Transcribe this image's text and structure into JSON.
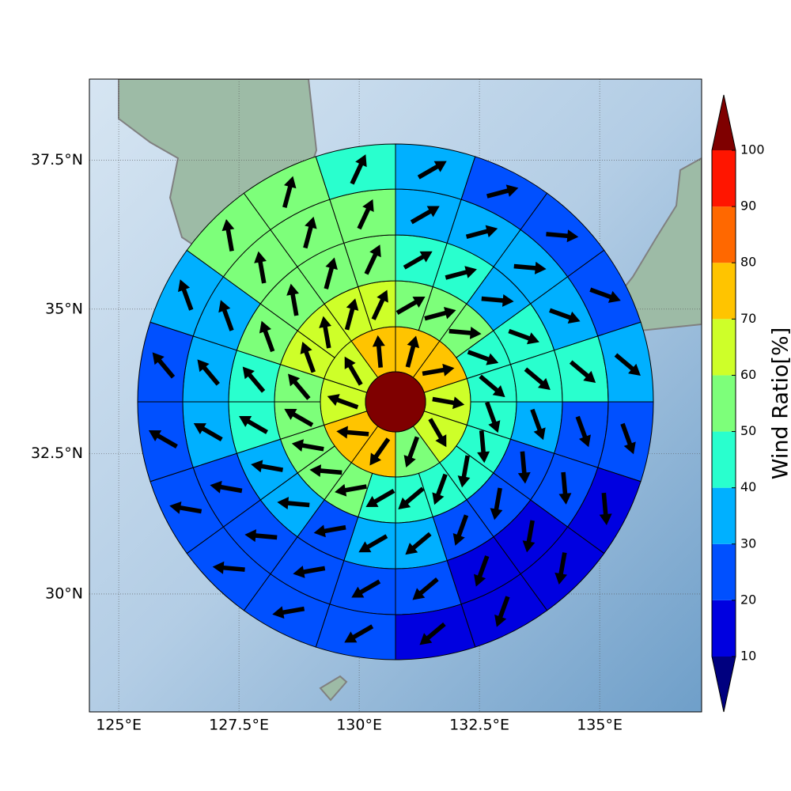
{
  "chart_data": {
    "type": "polar-sectors",
    "xlim": [
      124.39,
      137.12
    ],
    "ylim": [
      27.85,
      38.83
    ],
    "xticks": [
      {
        "value": 125,
        "label": "125°E"
      },
      {
        "value": 127.5,
        "label": "127.5°E"
      },
      {
        "value": 130,
        "label": "130°E"
      },
      {
        "value": 132.5,
        "label": "132.5°E"
      },
      {
        "value": 135,
        "label": "135°E"
      }
    ],
    "yticks": [
      {
        "value": 30,
        "label": "30°N"
      },
      {
        "value": 32.5,
        "label": "32.5°N"
      },
      {
        "value": 35,
        "label": "35°N"
      },
      {
        "value": 37.5,
        "label": "37.5°N"
      }
    ],
    "grid": true,
    "colorbar": {
      "label": "Wind Ratio[%]",
      "levels": [
        10,
        20,
        30,
        40,
        50,
        60,
        70,
        80,
        90,
        100
      ],
      "colors": [
        "#0000e0",
        "#0050ff",
        "#00b0ff",
        "#29ffce",
        "#7dff7a",
        "#ceff29",
        "#ffc400",
        "#ff6800",
        "#ff1500"
      ],
      "under_color": "#00007f",
      "over_color": "#7f0000"
    },
    "center_value": 105,
    "rings": [
      {
        "values": [
          75,
          75,
          65,
          65,
          55,
          75,
          75,
          65,
          65,
          75
        ],
        "directions": [
          15,
          80,
          100,
          150,
          200,
          215,
          275,
          290,
          330,
          355
        ]
      },
      {
        "values": [
          55,
          55,
          55,
          45,
          45,
          45,
          45,
          45,
          45,
          45,
          45,
          55,
          55,
          55,
          55,
          55,
          65,
          65,
          65,
          65
        ],
        "directions": [
          60,
          75,
          95,
          110,
          130,
          160,
          175,
          190,
          200,
          230,
          240,
          260,
          275,
          280,
          300,
          320,
          340,
          350,
          15,
          25
        ]
      },
      {
        "values": [
          45,
          45,
          35,
          45,
          45,
          35,
          25,
          25,
          25,
          35,
          35,
          25,
          35,
          35,
          45,
          45,
          55,
          55,
          55,
          55
        ],
        "directions": [
          60,
          75,
          95,
          110,
          130,
          160,
          175,
          190,
          200,
          230,
          240,
          260,
          275,
          280,
          300,
          320,
          340,
          350,
          15,
          25
        ]
      },
      {
        "values": [
          35,
          35,
          35,
          35,
          45,
          25,
          25,
          15,
          15,
          25,
          25,
          25,
          25,
          25,
          35,
          35,
          35,
          55,
          55,
          55
        ],
        "directions": [
          60,
          75,
          95,
          110,
          130,
          160,
          175,
          190,
          200,
          230,
          240,
          260,
          275,
          280,
          300,
          320,
          340,
          350,
          15,
          25
        ]
      },
      {
        "values": [
          35,
          25,
          25,
          25,
          35,
          25,
          15,
          15,
          15,
          15,
          25,
          25,
          25,
          25,
          25,
          25,
          35,
          55,
          55,
          45
        ],
        "directions": [
          60,
          75,
          95,
          110,
          130,
          160,
          175,
          190,
          200,
          230,
          240,
          260,
          275,
          280,
          300,
          320,
          340,
          350,
          15,
          25
        ]
      }
    ]
  }
}
